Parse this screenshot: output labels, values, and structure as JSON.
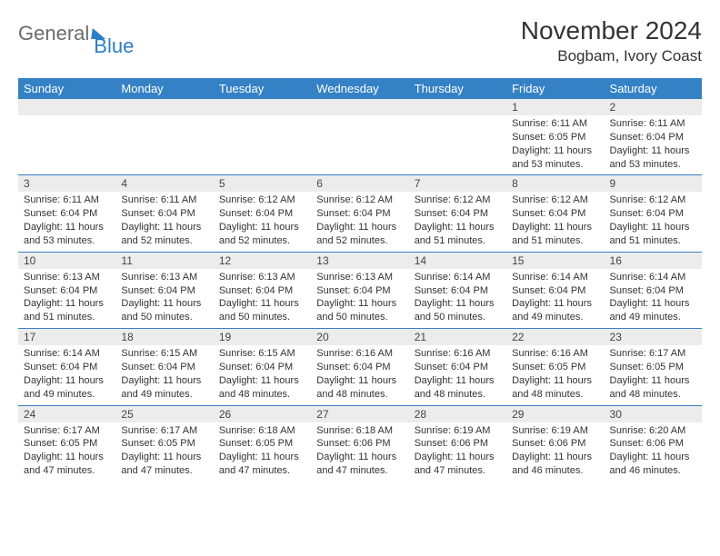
{
  "brand": {
    "part1": "General",
    "part2": "Blue"
  },
  "title": "November 2024",
  "location": "Bogbam, Ivory Coast",
  "colors": {
    "header_bg": "#3482c5",
    "header_fg": "#ffffff",
    "daynum_bg": "#ececec",
    "row_border": "#3482c5",
    "text": "#333333",
    "logo_gray": "#6b6b6b",
    "logo_blue": "#2d7dc6"
  },
  "day_headers": [
    "Sunday",
    "Monday",
    "Tuesday",
    "Wednesday",
    "Thursday",
    "Friday",
    "Saturday"
  ],
  "weeks": [
    [
      null,
      null,
      null,
      null,
      null,
      {
        "n": "1",
        "sr": "Sunrise: 6:11 AM",
        "ss": "Sunset: 6:05 PM",
        "dl": "Daylight: 11 hours and 53 minutes."
      },
      {
        "n": "2",
        "sr": "Sunrise: 6:11 AM",
        "ss": "Sunset: 6:04 PM",
        "dl": "Daylight: 11 hours and 53 minutes."
      }
    ],
    [
      {
        "n": "3",
        "sr": "Sunrise: 6:11 AM",
        "ss": "Sunset: 6:04 PM",
        "dl": "Daylight: 11 hours and 53 minutes."
      },
      {
        "n": "4",
        "sr": "Sunrise: 6:11 AM",
        "ss": "Sunset: 6:04 PM",
        "dl": "Daylight: 11 hours and 52 minutes."
      },
      {
        "n": "5",
        "sr": "Sunrise: 6:12 AM",
        "ss": "Sunset: 6:04 PM",
        "dl": "Daylight: 11 hours and 52 minutes."
      },
      {
        "n": "6",
        "sr": "Sunrise: 6:12 AM",
        "ss": "Sunset: 6:04 PM",
        "dl": "Daylight: 11 hours and 52 minutes."
      },
      {
        "n": "7",
        "sr": "Sunrise: 6:12 AM",
        "ss": "Sunset: 6:04 PM",
        "dl": "Daylight: 11 hours and 51 minutes."
      },
      {
        "n": "8",
        "sr": "Sunrise: 6:12 AM",
        "ss": "Sunset: 6:04 PM",
        "dl": "Daylight: 11 hours and 51 minutes."
      },
      {
        "n": "9",
        "sr": "Sunrise: 6:12 AM",
        "ss": "Sunset: 6:04 PM",
        "dl": "Daylight: 11 hours and 51 minutes."
      }
    ],
    [
      {
        "n": "10",
        "sr": "Sunrise: 6:13 AM",
        "ss": "Sunset: 6:04 PM",
        "dl": "Daylight: 11 hours and 51 minutes."
      },
      {
        "n": "11",
        "sr": "Sunrise: 6:13 AM",
        "ss": "Sunset: 6:04 PM",
        "dl": "Daylight: 11 hours and 50 minutes."
      },
      {
        "n": "12",
        "sr": "Sunrise: 6:13 AM",
        "ss": "Sunset: 6:04 PM",
        "dl": "Daylight: 11 hours and 50 minutes."
      },
      {
        "n": "13",
        "sr": "Sunrise: 6:13 AM",
        "ss": "Sunset: 6:04 PM",
        "dl": "Daylight: 11 hours and 50 minutes."
      },
      {
        "n": "14",
        "sr": "Sunrise: 6:14 AM",
        "ss": "Sunset: 6:04 PM",
        "dl": "Daylight: 11 hours and 50 minutes."
      },
      {
        "n": "15",
        "sr": "Sunrise: 6:14 AM",
        "ss": "Sunset: 6:04 PM",
        "dl": "Daylight: 11 hours and 49 minutes."
      },
      {
        "n": "16",
        "sr": "Sunrise: 6:14 AM",
        "ss": "Sunset: 6:04 PM",
        "dl": "Daylight: 11 hours and 49 minutes."
      }
    ],
    [
      {
        "n": "17",
        "sr": "Sunrise: 6:14 AM",
        "ss": "Sunset: 6:04 PM",
        "dl": "Daylight: 11 hours and 49 minutes."
      },
      {
        "n": "18",
        "sr": "Sunrise: 6:15 AM",
        "ss": "Sunset: 6:04 PM",
        "dl": "Daylight: 11 hours and 49 minutes."
      },
      {
        "n": "19",
        "sr": "Sunrise: 6:15 AM",
        "ss": "Sunset: 6:04 PM",
        "dl": "Daylight: 11 hours and 48 minutes."
      },
      {
        "n": "20",
        "sr": "Sunrise: 6:16 AM",
        "ss": "Sunset: 6:04 PM",
        "dl": "Daylight: 11 hours and 48 minutes."
      },
      {
        "n": "21",
        "sr": "Sunrise: 6:16 AM",
        "ss": "Sunset: 6:04 PM",
        "dl": "Daylight: 11 hours and 48 minutes."
      },
      {
        "n": "22",
        "sr": "Sunrise: 6:16 AM",
        "ss": "Sunset: 6:05 PM",
        "dl": "Daylight: 11 hours and 48 minutes."
      },
      {
        "n": "23",
        "sr": "Sunrise: 6:17 AM",
        "ss": "Sunset: 6:05 PM",
        "dl": "Daylight: 11 hours and 48 minutes."
      }
    ],
    [
      {
        "n": "24",
        "sr": "Sunrise: 6:17 AM",
        "ss": "Sunset: 6:05 PM",
        "dl": "Daylight: 11 hours and 47 minutes."
      },
      {
        "n": "25",
        "sr": "Sunrise: 6:17 AM",
        "ss": "Sunset: 6:05 PM",
        "dl": "Daylight: 11 hours and 47 minutes."
      },
      {
        "n": "26",
        "sr": "Sunrise: 6:18 AM",
        "ss": "Sunset: 6:05 PM",
        "dl": "Daylight: 11 hours and 47 minutes."
      },
      {
        "n": "27",
        "sr": "Sunrise: 6:18 AM",
        "ss": "Sunset: 6:06 PM",
        "dl": "Daylight: 11 hours and 47 minutes."
      },
      {
        "n": "28",
        "sr": "Sunrise: 6:19 AM",
        "ss": "Sunset: 6:06 PM",
        "dl": "Daylight: 11 hours and 47 minutes."
      },
      {
        "n": "29",
        "sr": "Sunrise: 6:19 AM",
        "ss": "Sunset: 6:06 PM",
        "dl": "Daylight: 11 hours and 46 minutes."
      },
      {
        "n": "30",
        "sr": "Sunrise: 6:20 AM",
        "ss": "Sunset: 6:06 PM",
        "dl": "Daylight: 11 hours and 46 minutes."
      }
    ]
  ]
}
